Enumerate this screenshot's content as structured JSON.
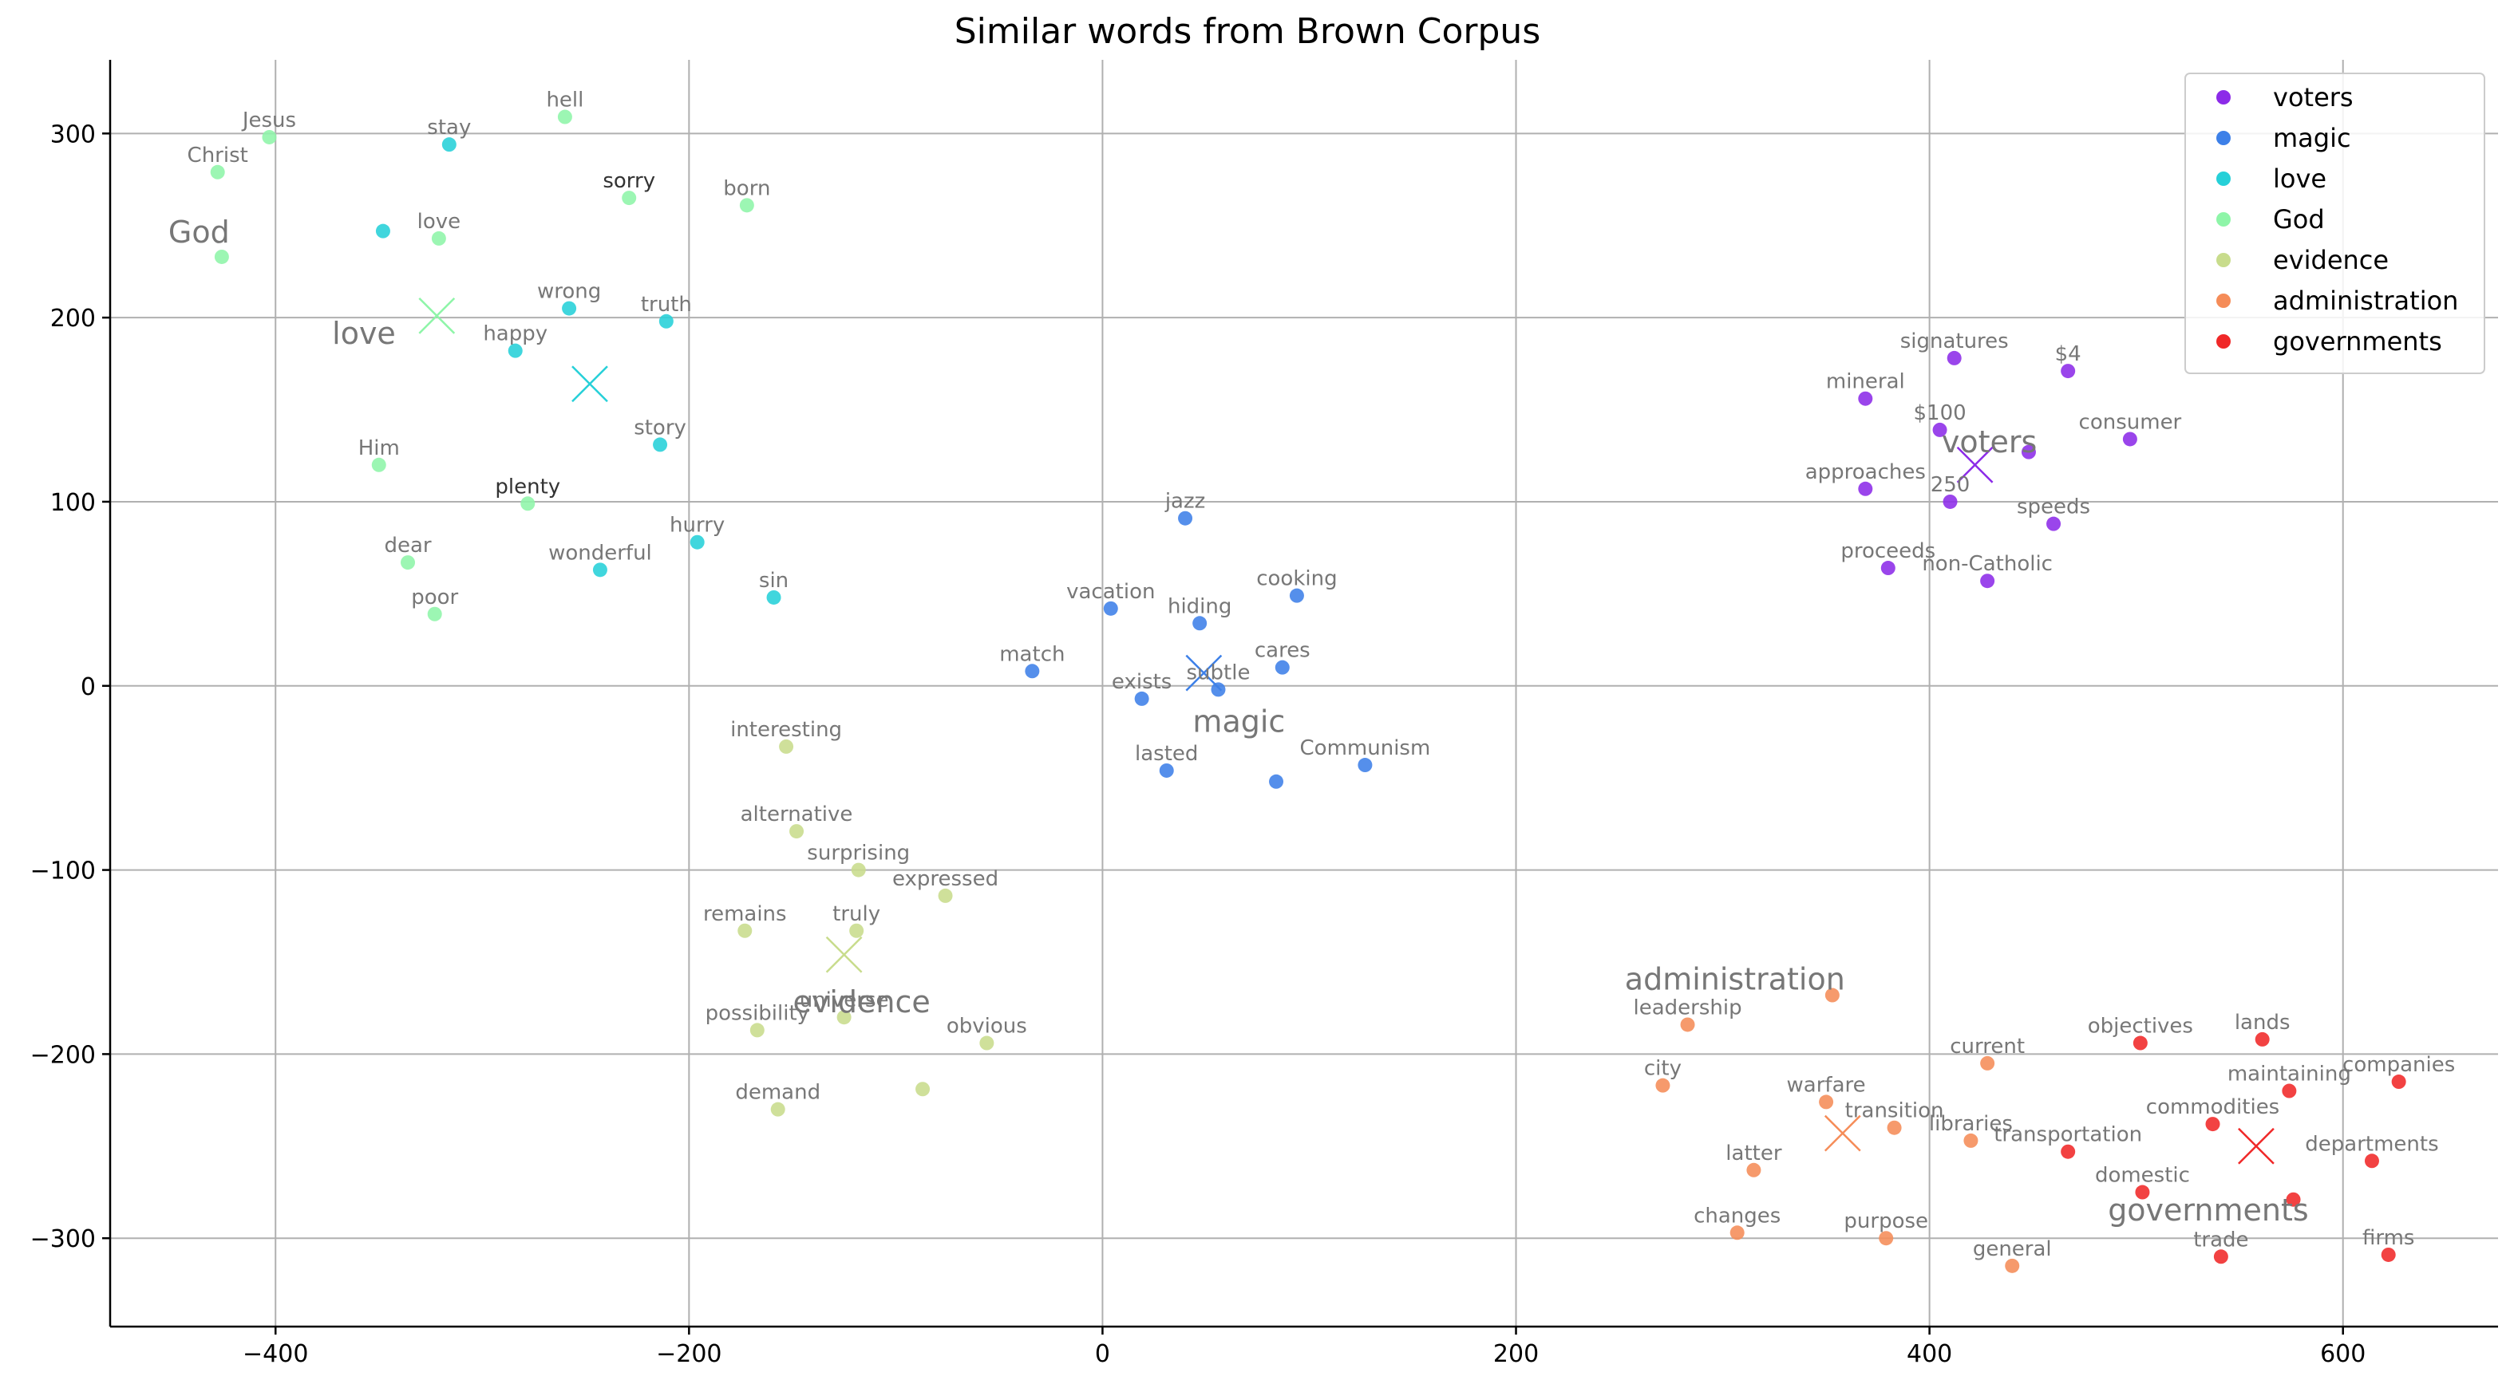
{
  "chart_data": {
    "type": "scatter",
    "title": "Similar words from Brown Corpus",
    "xlabel": "",
    "ylabel": "",
    "xlim": [
      -480,
      675
    ],
    "ylim": [
      -348,
      340
    ],
    "xticks": [
      -400,
      -200,
      0,
      200,
      400,
      600
    ],
    "yticks": [
      -300,
      -200,
      -100,
      0,
      100,
      200,
      300
    ],
    "xtick_labels": [
      "−400",
      "−200",
      "0",
      "200",
      "400",
      "600"
    ],
    "ytick_labels": [
      "−300",
      "−200",
      "−100",
      "0",
      "100",
      "200",
      "300"
    ],
    "grid": true,
    "legend_position": "top-right",
    "series": [
      {
        "name": "voters",
        "color": "#8c2be8",
        "centroid": {
          "x": 422,
          "y": 120,
          "label": "voters"
        },
        "points": [
          {
            "label": "signatures",
            "x": 412,
            "y": 178
          },
          {
            "label": "$4",
            "x": 467,
            "y": 171
          },
          {
            "label": "mineral",
            "x": 369,
            "y": 156
          },
          {
            "label": "$100",
            "x": 405,
            "y": 139
          },
          {
            "label": "consumer",
            "x": 497,
            "y": 134
          },
          {
            "label": "approaches",
            "x": 369,
            "y": 107
          },
          {
            "label": "250",
            "x": 410,
            "y": 100
          },
          {
            "label": "speeds",
            "x": 460,
            "y": 88
          },
          {
            "label": "proceeds",
            "x": 380,
            "y": 64
          },
          {
            "label": "non-Catholic",
            "x": 428,
            "y": 57
          },
          {
            "label": "",
            "x": 448,
            "y": 127
          }
        ]
      },
      {
        "name": "magic",
        "color": "#3d80e8",
        "centroid": {
          "x": 49,
          "y": 7,
          "label": "magic"
        },
        "points": [
          {
            "label": "jazz",
            "x": 40,
            "y": 91
          },
          {
            "label": "vacation",
            "x": 4,
            "y": 42
          },
          {
            "label": "cooking",
            "x": 94,
            "y": 49
          },
          {
            "label": "hiding",
            "x": 47,
            "y": 34
          },
          {
            "label": "match",
            "x": -34,
            "y": 8
          },
          {
            "label": "cares",
            "x": 87,
            "y": 10
          },
          {
            "label": "exists",
            "x": 19,
            "y": -7
          },
          {
            "label": "subtle",
            "x": 56,
            "y": -2
          },
          {
            "label": "lasted",
            "x": 31,
            "y": -46
          },
          {
            "label": "Communism",
            "x": 127,
            "y": -43
          },
          {
            "label": "",
            "x": 84,
            "y": -52
          }
        ]
      },
      {
        "name": "love",
        "color": "#26d0d8",
        "centroid": {
          "x": -248,
          "y": 164,
          "label": "love"
        },
        "points": [
          {
            "label": "stay",
            "x": -316,
            "y": 294
          },
          {
            "label": "",
            "x": -348,
            "y": 247
          },
          {
            "label": "wrong",
            "x": -258,
            "y": 205
          },
          {
            "label": "truth",
            "x": -211,
            "y": 198
          },
          {
            "label": "happy",
            "x": -284,
            "y": 182
          },
          {
            "label": "story",
            "x": -214,
            "y": 131
          },
          {
            "label": "hurry",
            "x": -196,
            "y": 78
          },
          {
            "label": "wonderful",
            "x": -243,
            "y": 63
          },
          {
            "label": "sin",
            "x": -159,
            "y": 48
          }
        ]
      },
      {
        "name": "God",
        "color": "#8ef5a8",
        "centroid": {
          "x": -322,
          "y": 201,
          "label": "God"
        },
        "points": [
          {
            "label": "Jesus",
            "x": -403,
            "y": 298
          },
          {
            "label": "hell",
            "x": -260,
            "y": 309
          },
          {
            "label": "Christ",
            "x": -428,
            "y": 279
          },
          {
            "label": "sorry",
            "x": -229,
            "y": 265
          },
          {
            "label": "born",
            "x": -172,
            "y": 261
          },
          {
            "label": "love",
            "x": -321,
            "y": 243
          },
          {
            "label": "",
            "x": -426,
            "y": 233
          },
          {
            "label": "Him",
            "x": -350,
            "y": 120
          },
          {
            "label": "plenty",
            "x": -278,
            "y": 99
          },
          {
            "label": "dear",
            "x": -336,
            "y": 67
          },
          {
            "label": "poor",
            "x": -323,
            "y": 39
          }
        ]
      },
      {
        "name": "evidence",
        "color": "#c8dc8c",
        "centroid": {
          "x": -125,
          "y": -146,
          "label": "evidence"
        },
        "points": [
          {
            "label": "interesting",
            "x": -153,
            "y": -33
          },
          {
            "label": "alternative",
            "x": -148,
            "y": -79
          },
          {
            "label": "surprising",
            "x": -118,
            "y": -100
          },
          {
            "label": "expressed",
            "x": -76,
            "y": -114
          },
          {
            "label": "remains",
            "x": -173,
            "y": -133
          },
          {
            "label": "truly",
            "x": -119,
            "y": -133
          },
          {
            "label": "universe",
            "x": -125,
            "y": -180
          },
          {
            "label": "possibility",
            "x": -167,
            "y": -187
          },
          {
            "label": "obvious",
            "x": -56,
            "y": -194
          },
          {
            "label": "demand",
            "x": -157,
            "y": -230
          },
          {
            "label": "",
            "x": -87,
            "y": -219
          }
        ]
      },
      {
        "name": "administration",
        "color": "#f58c58",
        "centroid": {
          "x": 358,
          "y": -243,
          "label": "administration"
        },
        "points": [
          {
            "label": "leadership",
            "x": 283,
            "y": -184
          },
          {
            "label": "",
            "x": 353,
            "y": -168
          },
          {
            "label": "current",
            "x": 428,
            "y": -205
          },
          {
            "label": "city",
            "x": 271,
            "y": -217
          },
          {
            "label": "warfare",
            "x": 350,
            "y": -226
          },
          {
            "label": "transition",
            "x": 383,
            "y": -240
          },
          {
            "label": "libraries",
            "x": 420,
            "y": -247
          },
          {
            "label": "latter",
            "x": 315,
            "y": -263
          },
          {
            "label": "changes",
            "x": 307,
            "y": -297
          },
          {
            "label": "purpose",
            "x": 379,
            "y": -300
          },
          {
            "label": "general",
            "x": 440,
            "y": -315
          }
        ]
      },
      {
        "name": "governments",
        "color": "#f02828",
        "centroid": {
          "x": 558,
          "y": -250,
          "label": "governments"
        },
        "points": [
          {
            "label": "objectives",
            "x": 502,
            "y": -194
          },
          {
            "label": "lands",
            "x": 561,
            "y": -192
          },
          {
            "label": "maintaining",
            "x": 574,
            "y": -220
          },
          {
            "label": "companies",
            "x": 627,
            "y": -215
          },
          {
            "label": "commodities",
            "x": 537,
            "y": -238
          },
          {
            "label": "transportation",
            "x": 467,
            "y": -253
          },
          {
            "label": "departments",
            "x": 614,
            "y": -258
          },
          {
            "label": "domestic",
            "x": 503,
            "y": -275
          },
          {
            "label": "",
            "x": 576,
            "y": -279
          },
          {
            "label": "trade",
            "x": 541,
            "y": -310
          },
          {
            "label": "firms",
            "x": 622,
            "y": -309
          }
        ]
      }
    ]
  }
}
